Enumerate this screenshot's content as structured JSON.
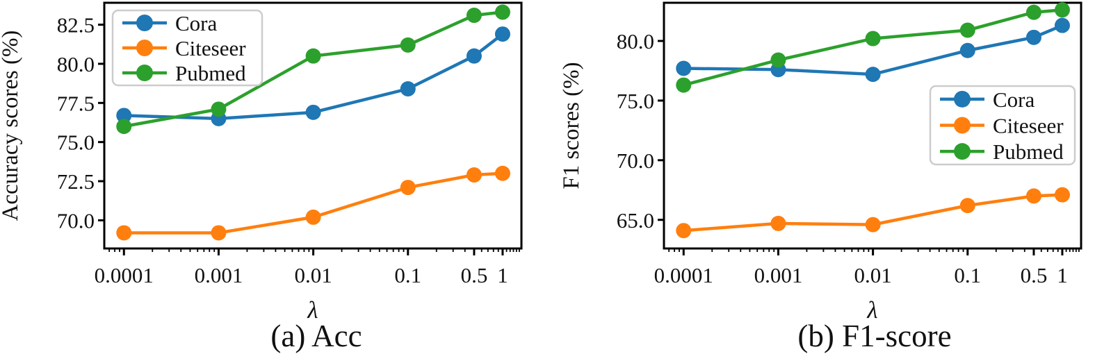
{
  "figure_title": "",
  "colors": {
    "cora": "#1f77b4",
    "citeseer": "#ff7f0e",
    "pubmed": "#2ca02c",
    "axis": "#000000",
    "legend_border": "#cccccc",
    "background": "#ffffff"
  },
  "chart_data": [
    {
      "id": "acc",
      "type": "line",
      "caption": "(a) Acc",
      "xlabel": "λ",
      "ylabel": "Accuracy scores (%)",
      "xscale": "log",
      "grid": false,
      "legend_position": "upper-left",
      "x": [
        0.0001,
        0.001,
        0.01,
        0.1,
        0.5,
        1
      ],
      "xtick_labels": [
        "0.0001",
        "0.001",
        "0.01",
        "0.1",
        "0.5",
        "1"
      ],
      "xlim": [
        6.2e-05,
        1.58
      ],
      "yticks": [
        70.0,
        72.5,
        75.0,
        77.5,
        80.0,
        82.5
      ],
      "ytick_labels": [
        "70.0",
        "72.5",
        "75.0",
        "77.5",
        "80.0",
        "82.5"
      ],
      "ylim": [
        68.2,
        83.9
      ],
      "series": [
        {
          "name": "Cora",
          "color": "#1f77b4",
          "values": [
            76.7,
            76.5,
            76.9,
            78.4,
            80.5,
            81.9
          ]
        },
        {
          "name": "Citeseer",
          "color": "#ff7f0e",
          "values": [
            69.2,
            69.2,
            70.2,
            72.1,
            72.9,
            73.0
          ]
        },
        {
          "name": "Pubmed",
          "color": "#2ca02c",
          "values": [
            76.0,
            77.1,
            80.5,
            81.2,
            83.1,
            83.3
          ]
        }
      ]
    },
    {
      "id": "f1",
      "type": "line",
      "caption": "(b) F1-score",
      "xlabel": "λ",
      "ylabel": "F1 scores (%)",
      "xscale": "log",
      "grid": false,
      "legend_position": "center-right",
      "x": [
        0.0001,
        0.001,
        0.01,
        0.1,
        0.5,
        1
      ],
      "xtick_labels": [
        "0.0001",
        "0.001",
        "0.01",
        "0.1",
        "0.5",
        "1"
      ],
      "xlim": [
        6.2e-05,
        1.58
      ],
      "yticks": [
        65.0,
        70.0,
        75.0,
        80.0
      ],
      "ytick_labels": [
        "65.0",
        "70.0",
        "75.0",
        "80.0"
      ],
      "ylim": [
        62.6,
        83.2
      ],
      "series": [
        {
          "name": "Cora",
          "color": "#1f77b4",
          "values": [
            77.7,
            77.6,
            77.2,
            79.2,
            80.3,
            81.3
          ]
        },
        {
          "name": "Citeseer",
          "color": "#ff7f0e",
          "values": [
            64.1,
            64.7,
            64.6,
            66.2,
            67.0,
            67.1
          ]
        },
        {
          "name": "Pubmed",
          "color": "#2ca02c",
          "values": [
            76.3,
            78.4,
            80.2,
            80.9,
            82.4,
            82.6
          ]
        }
      ]
    }
  ]
}
